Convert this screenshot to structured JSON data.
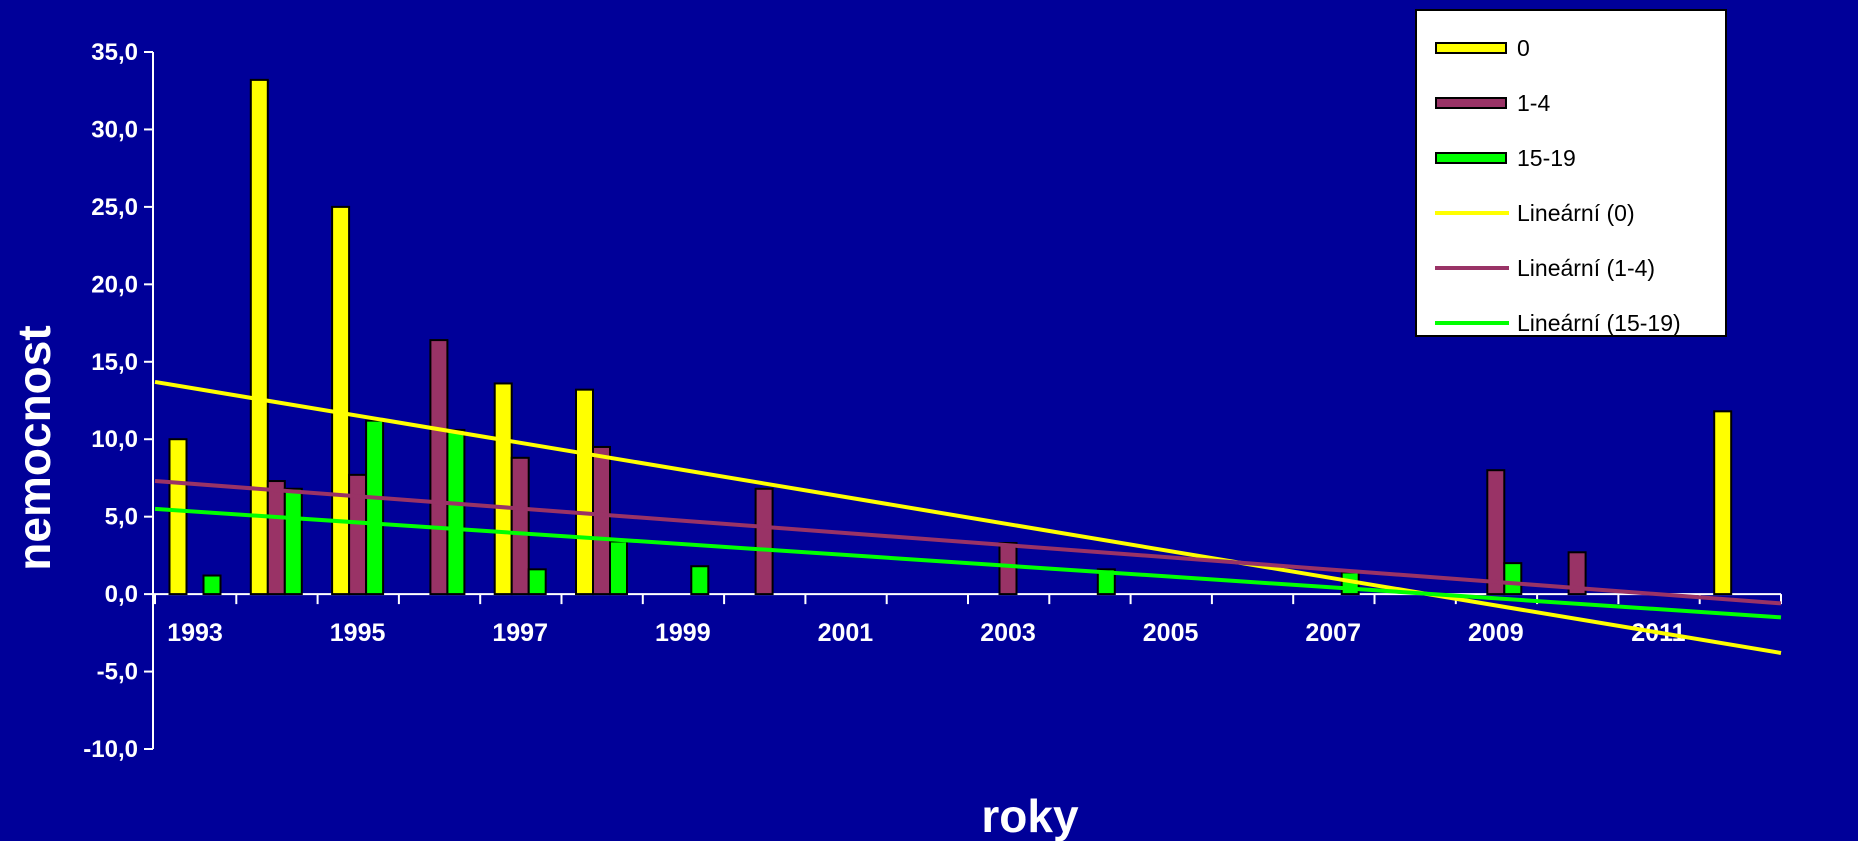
{
  "chart_data": {
    "type": "bar",
    "xlabel": "roky",
    "ylabel": "nemocnost",
    "ylim": [
      -10,
      35
    ],
    "yticks": [
      "-10,0",
      "-5,0",
      "0,0",
      "5,0",
      "10,0",
      "15,0",
      "20,0",
      "25,0",
      "30,0",
      "35,0"
    ],
    "xticks": [
      "1993",
      "1995",
      "1997",
      "1999",
      "2001",
      "2003",
      "2005",
      "2007",
      "2009",
      "2011"
    ],
    "categories": [
      "1993",
      "1994",
      "1995",
      "1996",
      "1997",
      "1998",
      "1999",
      "2000",
      "2001",
      "2002",
      "2003",
      "2004",
      "2005",
      "2006",
      "2007",
      "2008",
      "2009",
      "2010",
      "2011",
      "2012"
    ],
    "series": [
      {
        "name": "0",
        "color": "#FFFF00",
        "values": [
          10.0,
          33.2,
          25.0,
          null,
          13.6,
          13.2,
          null,
          null,
          null,
          null,
          null,
          null,
          null,
          null,
          null,
          null,
          null,
          null,
          null,
          11.8
        ]
      },
      {
        "name": "1-4",
        "color": "#993366",
        "values": [
          null,
          7.3,
          7.7,
          16.4,
          8.8,
          9.5,
          null,
          6.8,
          null,
          null,
          3.3,
          null,
          null,
          null,
          null,
          null,
          8.0,
          2.7,
          null,
          null
        ]
      },
      {
        "name": "15-19",
        "color": "#00FF00",
        "values": [
          1.2,
          6.8,
          11.2,
          10.6,
          1.6,
          3.4,
          1.8,
          null,
          null,
          null,
          null,
          1.6,
          null,
          null,
          1.4,
          null,
          2.0,
          null,
          null,
          null
        ]
      }
    ],
    "trendlines": [
      {
        "name": "Lineární (0)",
        "color": "#FFFF00",
        "start": [
          1993,
          13.7
        ],
        "end": [
          2013,
          -3.8
        ]
      },
      {
        "name": "Lineární (1-4)",
        "color": "#993366",
        "start": [
          1993,
          7.3
        ],
        "end": [
          2013,
          -0.6
        ]
      },
      {
        "name": "Lineární (15-19)",
        "color": "#00FF00",
        "start": [
          1993,
          5.5
        ],
        "end": [
          2013,
          -1.5
        ]
      }
    ],
    "legend_position": "top-right",
    "grid": false
  }
}
